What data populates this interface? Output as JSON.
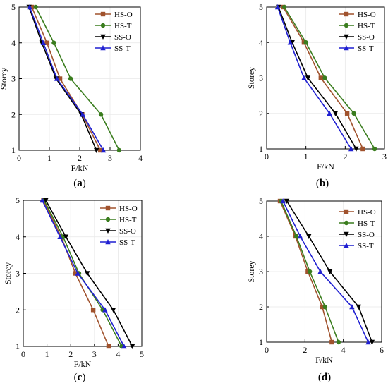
{
  "colors": {
    "HS-O": "#a0522d",
    "HS-T": "#3a7d1e",
    "SS-O": "#000000",
    "SS-T": "#1f1fd1"
  },
  "markers": {
    "HS-O": "square",
    "HS-T": "circle",
    "SS-O": "triangle-down",
    "SS-T": "triangle-up"
  },
  "chart_data": [
    {
      "type": "line",
      "panel_label": "(a)",
      "xlabel": "F/kN",
      "ylabel": "Storey",
      "xlim": [
        0,
        4
      ],
      "ylim": [
        1,
        5
      ],
      "xticks": [
        0,
        1,
        2,
        3,
        4
      ],
      "yticks": [
        1,
        2,
        3,
        4,
        5
      ],
      "legend_position": "top-right",
      "y": [
        1,
        2,
        3,
        4,
        5
      ],
      "series": [
        {
          "name": "HS-O",
          "x": [
            2.68,
            2.08,
            1.35,
            0.92,
            0.42
          ]
        },
        {
          "name": "HS-T",
          "x": [
            3.3,
            2.7,
            1.7,
            1.15,
            0.55
          ]
        },
        {
          "name": "SS-O",
          "x": [
            2.55,
            2.05,
            1.22,
            0.75,
            0.33
          ]
        },
        {
          "name": "SS-T",
          "x": [
            2.78,
            2.1,
            1.25,
            0.8,
            0.35
          ]
        }
      ]
    },
    {
      "type": "line",
      "panel_label": "(b)",
      "xlabel": "F/kN",
      "ylabel": "Storey",
      "xlim": [
        0,
        3
      ],
      "ylim": [
        1,
        5
      ],
      "xticks": [
        0,
        1,
        2,
        3
      ],
      "yticks": [
        1,
        2,
        3,
        4,
        5
      ],
      "legend_position": "top-right",
      "y": [
        1,
        2,
        3,
        4,
        5
      ],
      "series": [
        {
          "name": "HS-O",
          "x": [
            2.45,
            2.05,
            1.38,
            0.95,
            0.42
          ]
        },
        {
          "name": "HS-T",
          "x": [
            2.75,
            2.22,
            1.48,
            1.0,
            0.45
          ]
        },
        {
          "name": "SS-O",
          "x": [
            2.28,
            1.75,
            1.05,
            0.65,
            0.3
          ]
        },
        {
          "name": "SS-T",
          "x": [
            2.15,
            1.6,
            0.95,
            0.6,
            0.28
          ]
        }
      ]
    },
    {
      "type": "line",
      "panel_label": "(c)",
      "xlabel": "F/kN",
      "ylabel": "Storey",
      "xlim": [
        0,
        5
      ],
      "ylim": [
        1,
        5
      ],
      "xticks": [
        0,
        1,
        2,
        3,
        4,
        5
      ],
      "yticks": [
        1,
        2,
        3,
        4,
        5
      ],
      "legend_position": "top-right",
      "y": [
        1,
        2,
        3,
        4,
        5
      ],
      "series": [
        {
          "name": "HS-O",
          "x": [
            3.6,
            2.95,
            2.2,
            1.6,
            0.85
          ]
        },
        {
          "name": "HS-T",
          "x": [
            4.15,
            3.35,
            2.35,
            1.68,
            0.88
          ]
        },
        {
          "name": "SS-O",
          "x": [
            4.6,
            3.8,
            2.7,
            1.8,
            0.95
          ]
        },
        {
          "name": "SS-T",
          "x": [
            4.25,
            3.45,
            2.3,
            1.55,
            0.8
          ]
        }
      ]
    },
    {
      "type": "line",
      "panel_label": "(d)",
      "xlabel": "F/kN",
      "ylabel": "Storey",
      "xlim": [
        0,
        6
      ],
      "ylim": [
        1,
        5
      ],
      "xticks": [
        0,
        2,
        4,
        6
      ],
      "yticks": [
        1,
        2,
        3,
        4,
        5
      ],
      "legend_position": "top-right",
      "y": [
        1,
        2,
        3,
        4,
        5
      ],
      "series": [
        {
          "name": "HS-O",
          "x": [
            3.4,
            2.9,
            2.15,
            1.5,
            0.7
          ]
        },
        {
          "name": "HS-T",
          "x": [
            3.75,
            3.05,
            2.25,
            1.55,
            0.75
          ]
        },
        {
          "name": "SS-O",
          "x": [
            5.5,
            4.8,
            3.3,
            2.2,
            1.05
          ]
        },
        {
          "name": "SS-T",
          "x": [
            5.3,
            4.45,
            2.8,
            1.75,
            0.85
          ]
        }
      ]
    }
  ]
}
